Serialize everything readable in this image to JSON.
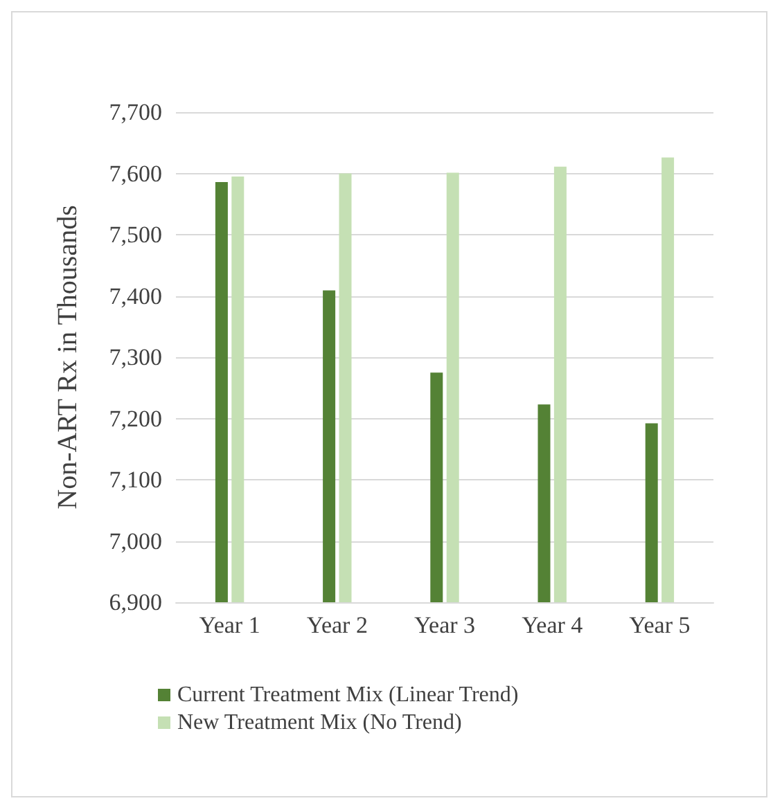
{
  "chart_data": {
    "type": "bar",
    "ylabel": "Non-ART Rx in Thousands",
    "categories": [
      "Year 1",
      "Year 2",
      "Year 3",
      "Year 4",
      "Year 5"
    ],
    "series": [
      {
        "name": "Current Treatment Mix (Linear Trend)",
        "color": "#548235",
        "values": [
          7586,
          7409,
          7275,
          7223,
          7192
        ]
      },
      {
        "name": "New Treatment Mix (No Trend)",
        "color": "#c5e0b4",
        "values": [
          7595,
          7600,
          7601,
          7611,
          7626
        ]
      }
    ],
    "ylim": [
      6900,
      7700
    ],
    "yticks": [
      {
        "value": 6900,
        "label": "6,900"
      },
      {
        "value": 7000,
        "label": "7,000"
      },
      {
        "value": 7100,
        "label": "7,100"
      },
      {
        "value": 7200,
        "label": "7,200"
      },
      {
        "value": 7300,
        "label": "7,300"
      },
      {
        "value": 7400,
        "label": "7,400"
      },
      {
        "value": 7500,
        "label": "7,500"
      },
      {
        "value": 7600,
        "label": "7,600"
      },
      {
        "value": 7700,
        "label": "7,700"
      }
    ],
    "grid": "y",
    "legend": "bottom"
  }
}
